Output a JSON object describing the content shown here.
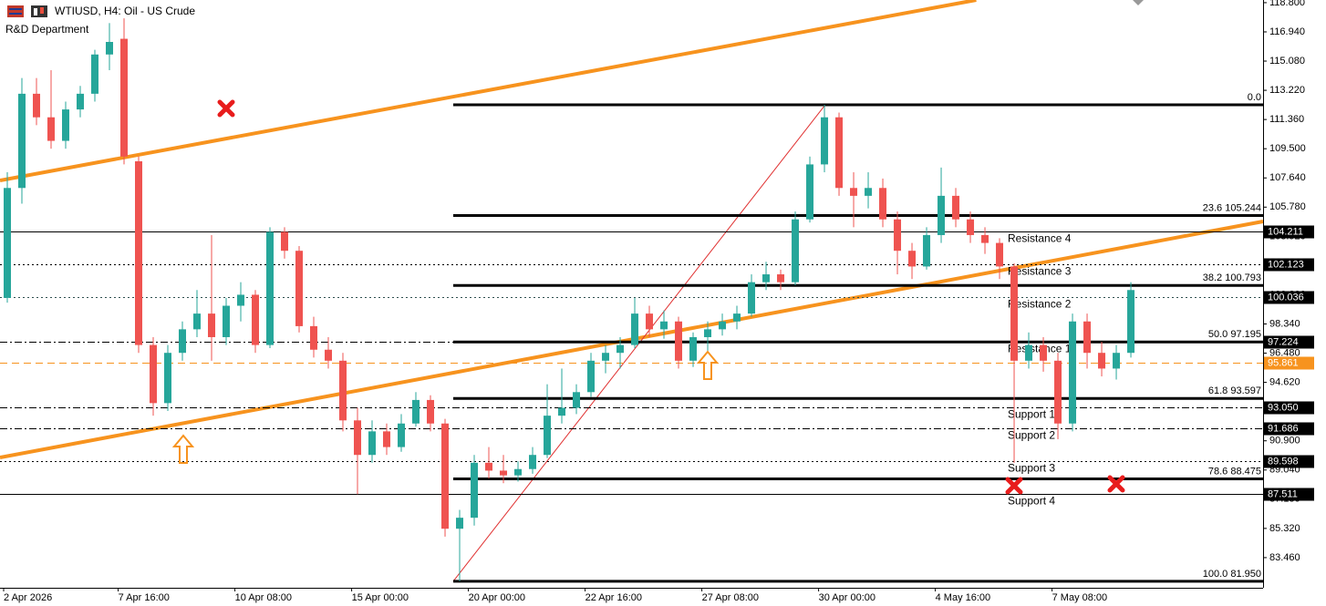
{
  "chart_data": {
    "type": "candlestick",
    "title": "WTIUSD, H4:  Oil - US Crude",
    "subtitle": "R&D Department",
    "up_color": "#26a69a",
    "down_color": "#ef5350",
    "open": [
      100,
      107,
      113,
      111.5,
      110,
      112,
      113,
      115.5,
      116.5,
      108.7,
      97,
      93.3,
      96.5,
      98,
      99,
      97.5,
      99.5,
      100.2,
      97,
      104.2,
      103,
      98.2,
      96.7,
      96,
      92.2,
      90,
      91.5,
      90.5,
      92,
      93.5,
      92,
      85.3,
      86,
      89.5,
      89,
      88.7,
      89.1,
      90,
      92.5,
      93,
      94,
      96,
      96.5,
      97,
      99,
      98,
      98.5,
      96,
      97.5,
      98,
      98.5,
      99,
      101,
      101.5,
      101,
      105,
      108.5,
      111.5,
      107,
      106.5,
      107,
      105,
      103,
      102,
      104,
      106.5,
      105,
      104,
      103.5,
      102,
      96,
      97,
      96,
      92,
      98.5,
      96.5,
      95.5,
      96.5
    ],
    "high": [
      108,
      114,
      114,
      114.5,
      112.5,
      113.5,
      115.8,
      117.5,
      117.8,
      109,
      97.5,
      97,
      98.5,
      100.5,
      104,
      100,
      101,
      100.5,
      104.5,
      104.5,
      103.3,
      98.8,
      97.5,
      96.5,
      93,
      92.2,
      92,
      92.6,
      94,
      93.8,
      92.3,
      86.5,
      90,
      90.5,
      90,
      89.6,
      90.5,
      94.5,
      95.5,
      94.5,
      96.5,
      97,
      97.5,
      100,
      99.5,
      99.2,
      98.8,
      97.8,
      98.5,
      99,
      99.5,
      101.5,
      102.3,
      101.8,
      105.5,
      109,
      112.3,
      111.8,
      108,
      108,
      107.6,
      105.5,
      103.5,
      104.5,
      108.3,
      107,
      105.5,
      104.5,
      103.8,
      102.2,
      97.8,
      97.5,
      96.5,
      99,
      99,
      97.2,
      97,
      101
    ],
    "low": [
      99.7,
      106,
      111,
      109.5,
      109.5,
      111.5,
      112.5,
      114.5,
      108.5,
      96.5,
      92.5,
      92.8,
      96,
      97.5,
      96,
      97,
      98.5,
      96.5,
      96.8,
      102.5,
      97.8,
      96.2,
      95.5,
      91.5,
      87.5,
      89.5,
      90,
      90.2,
      91.8,
      91.5,
      84.8,
      81.95,
      85.5,
      88.5,
      88.2,
      88.3,
      88.8,
      89.8,
      92,
      92.6,
      93.7,
      95.2,
      95.5,
      96.8,
      97.5,
      97.4,
      95.5,
      95.6,
      96.5,
      97.6,
      98,
      98.8,
      100.5,
      100.5,
      100.8,
      104.8,
      108,
      106.5,
      104.5,
      105.7,
      104.5,
      101.5,
      101.2,
      101.8,
      103.5,
      104.5,
      103.5,
      102.8,
      101.2,
      89.5,
      95.5,
      95.3,
      91,
      91.5,
      95.5,
      95,
      94.8,
      96.2
    ],
    "close": [
      107,
      113,
      111.5,
      110,
      112,
      113,
      115.5,
      116.3,
      109,
      97,
      93.3,
      96.5,
      98,
      99,
      97.5,
      99.5,
      100.2,
      97,
      104.2,
      103,
      98.2,
      96.7,
      96,
      92.2,
      90,
      91.5,
      90.5,
      92,
      93.5,
      92,
      85.3,
      86,
      89.5,
      89,
      88.7,
      89.1,
      90,
      92.5,
      93,
      94,
      96,
      96.5,
      97,
      99,
      98,
      98.5,
      96,
      97.5,
      98,
      98.5,
      99,
      101,
      101.5,
      101,
      105,
      108.5,
      111.5,
      107,
      106.5,
      107,
      105,
      103,
      102,
      104,
      106.5,
      105,
      104,
      103.5,
      102,
      96,
      97,
      96,
      92,
      98.5,
      96.5,
      95.5,
      96.5,
      100.5
    ],
    "xlim": [
      -0.5,
      86.06
    ],
    "ylim": [
      81.54,
      118.97
    ],
    "xticks": [
      {
        "value": -0.25,
        "label": "2 Apr 2026"
      },
      {
        "value": 7.6,
        "label": "7 Apr 16:00"
      },
      {
        "value": 15.6,
        "label": "10 Apr 08:00"
      },
      {
        "value": 23.6,
        "label": "15 Apr 00:00"
      },
      {
        "value": 31.6,
        "label": "20 Apr 00:00"
      },
      {
        "value": 39.6,
        "label": "22 Apr 16:00"
      },
      {
        "value": 47.6,
        "label": "27 Apr 08:00"
      },
      {
        "value": 55.6,
        "label": "30 Apr 00:00"
      },
      {
        "value": 63.6,
        "label": "4 May 16:00"
      },
      {
        "value": 71.6,
        "label": "7 May 08:00"
      }
    ],
    "yticks": [
      {
        "value": 118.8,
        "label": "118.800"
      },
      {
        "value": 116.94,
        "label": "116.940"
      },
      {
        "value": 115.08,
        "label": "115.080"
      },
      {
        "value": 113.22,
        "label": "113.220"
      },
      {
        "value": 111.36,
        "label": "111.360"
      },
      {
        "value": 109.5,
        "label": "109.500"
      },
      {
        "value": 107.64,
        "label": "107.640"
      },
      {
        "value": 105.78,
        "label": "105.780"
      },
      {
        "value": 103.92,
        "label": "103.920"
      },
      {
        "value": 102.06,
        "label": "102.060"
      },
      {
        "value": 100.2,
        "label": "100.200"
      },
      {
        "value": 98.34,
        "label": "98.340"
      },
      {
        "value": 96.48,
        "label": "96.480"
      },
      {
        "value": 94.62,
        "label": "94.620"
      },
      {
        "value": 92.76,
        "label": "92.760"
      },
      {
        "value": 90.9,
        "label": "90.900"
      },
      {
        "value": 89.04,
        "label": "89.040"
      },
      {
        "value": 87.18,
        "label": "87.180"
      },
      {
        "value": 85.32,
        "label": "85.320"
      },
      {
        "value": 83.46,
        "label": "83.460"
      }
    ],
    "levels": [
      {
        "value": 104.211,
        "label": "104.211",
        "style": "solid",
        "color": "#000000",
        "text": "Resistance 4"
      },
      {
        "value": 102.123,
        "label": "102.123",
        "style": "dotted",
        "color": "#000000",
        "text": "Resistance 3"
      },
      {
        "value": 100.036,
        "label": "100.036",
        "style": "dotted",
        "color": "#2f4f4f",
        "text": "Resistance 2"
      },
      {
        "value": 97.224,
        "label": "97.224",
        "style": "dashdot",
        "color": "#000000",
        "text": "Resistance 1"
      },
      {
        "value": 95.861,
        "label": "95.861",
        "style": "dashed",
        "color": "#f7931e"
      },
      {
        "value": 93.05,
        "label": "93.050",
        "style": "dashdot",
        "color": "#000000",
        "text": "Support 1"
      },
      {
        "value": 91.686,
        "label": "91.686",
        "style": "dashdot",
        "color": "#000000",
        "text": "Support 2"
      },
      {
        "value": 89.598,
        "label": "89.598",
        "style": "dotted",
        "color": "#000000",
        "text": "Support 3"
      },
      {
        "value": 87.511,
        "label": "87.511",
        "style": "solid",
        "color": "#000000",
        "text": "Support 4"
      }
    ],
    "fibonacci": {
      "start": 30.56,
      "color": "#000000",
      "levels": [
        {
          "value": 112.3,
          "label": "0.0"
        },
        {
          "value": 105.244,
          "label": "23.6 105.244"
        },
        {
          "value": 100.793,
          "label": "38.2 100.793"
        },
        {
          "value": 97.195,
          "label": "50.0 97.195"
        },
        {
          "value": 93.597,
          "label": "61.8 93.597"
        },
        {
          "value": 88.475,
          "label": "78.6 88.475"
        },
        {
          "value": 81.95,
          "label": "100.0 81.950"
        }
      ]
    },
    "trendlines": [
      {
        "color": "#f7931e",
        "width": 4,
        "points": [
          [
            -0.5,
            107.48
          ],
          [
            66.4,
            118.97
          ]
        ]
      },
      {
        "color": "#f7931e",
        "width": 4,
        "points": [
          [
            -0.5,
            89.84
          ],
          [
            86.06,
            104.87
          ]
        ]
      },
      {
        "color": "#e03030",
        "width": 1,
        "points": [
          [
            30.56,
            81.95
          ],
          [
            56.06,
            112.3
          ]
        ]
      }
    ]
  }
}
